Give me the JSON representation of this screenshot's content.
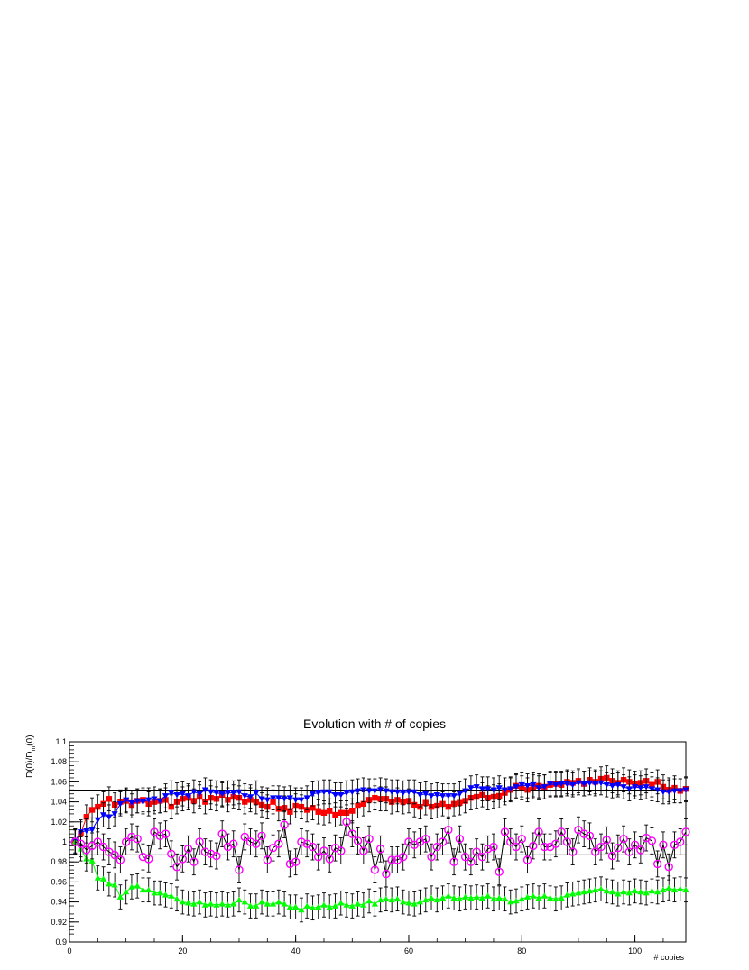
{
  "chart_data": {
    "type": "scatter",
    "title": "Evolution with # of copies",
    "xlabel": "# copies",
    "ylabel": "D(0)/D_m(0)",
    "xlim": [
      0,
      109
    ],
    "ylim": [
      0.9,
      1.1
    ],
    "x_ticks": [
      0,
      20,
      40,
      60,
      80,
      100
    ],
    "y_ticks": [
      0.9,
      0.92,
      0.94,
      0.96,
      0.98,
      1,
      1.02,
      1.04,
      1.06,
      1.08,
      1.1
    ],
    "reference_lines": [
      1.051,
      0.987
    ],
    "grid": false,
    "series": [
      {
        "color": "#ff0000",
        "marker": "square",
        "error": 0.012,
        "y": [
          1.0,
          1.008,
          1.025,
          1.032,
          1.035,
          1.038,
          1.043,
          1.037,
          1.04,
          1.041,
          1.036,
          1.041,
          1.042,
          1.038,
          1.04,
          1.041,
          1.042,
          1.035,
          1.04,
          1.043,
          1.044,
          1.041,
          1.045,
          1.04,
          1.044,
          1.043,
          1.047,
          1.042,
          1.045,
          1.044,
          1.04,
          1.042,
          1.04,
          1.037,
          1.035,
          1.04,
          1.033,
          1.034,
          1.03,
          1.036,
          1.035,
          1.032,
          1.034,
          1.03,
          1.029,
          1.031,
          1.027,
          1.029,
          1.029,
          1.031,
          1.036,
          1.038,
          1.042,
          1.044,
          1.043,
          1.043,
          1.04,
          1.042,
          1.04,
          1.041,
          1.037,
          1.035,
          1.039,
          1.035,
          1.036,
          1.038,
          1.035,
          1.038,
          1.039,
          1.041,
          1.044,
          1.045,
          1.047,
          1.044,
          1.045,
          1.046,
          1.049,
          1.052,
          1.056,
          1.054,
          1.052,
          1.055,
          1.056,
          1.055,
          1.057,
          1.058,
          1.057,
          1.06,
          1.059,
          1.061,
          1.058,
          1.062,
          1.06,
          1.063,
          1.064,
          1.061,
          1.059,
          1.062,
          1.06,
          1.058,
          1.059,
          1.061,
          1.057,
          1.06,
          1.055,
          1.052,
          1.054,
          1.051,
          1.053
        ]
      },
      {
        "color": "#0000ff",
        "marker": "triangle-down",
        "error": 0.012,
        "y": [
          1.001,
          1.01,
          1.011,
          1.012,
          1.022,
          1.027,
          1.025,
          1.028,
          1.038,
          1.042,
          1.039,
          1.041,
          1.04,
          1.042,
          1.043,
          1.041,
          1.046,
          1.049,
          1.047,
          1.048,
          1.046,
          1.05,
          1.048,
          1.052,
          1.05,
          1.049,
          1.048,
          1.049,
          1.049,
          1.05,
          1.046,
          1.045,
          1.049,
          1.043,
          1.042,
          1.044,
          1.044,
          1.043,
          1.044,
          1.042,
          1.042,
          1.044,
          1.048,
          1.049,
          1.05,
          1.05,
          1.047,
          1.047,
          1.049,
          1.05,
          1.051,
          1.052,
          1.051,
          1.051,
          1.052,
          1.051,
          1.05,
          1.05,
          1.049,
          1.05,
          1.05,
          1.047,
          1.048,
          1.046,
          1.047,
          1.046,
          1.046,
          1.046,
          1.048,
          1.051,
          1.054,
          1.055,
          1.053,
          1.053,
          1.052,
          1.054,
          1.052,
          1.053,
          1.055,
          1.057,
          1.056,
          1.057,
          1.054,
          1.055,
          1.058,
          1.057,
          1.058,
          1.058,
          1.057,
          1.059,
          1.058,
          1.059,
          1.058,
          1.059,
          1.057,
          1.056,
          1.057,
          1.055,
          1.053,
          1.055,
          1.054,
          1.055,
          1.053,
          1.052,
          1.05,
          1.05,
          1.051,
          1.051,
          1.052
        ]
      },
      {
        "color": "#00ff00",
        "marker": "triangle-up",
        "error": 0.012,
        "y": [
          1.0,
          0.993,
          0.983,
          0.981,
          0.964,
          0.963,
          0.958,
          0.957,
          0.945,
          0.95,
          0.955,
          0.956,
          0.952,
          0.952,
          0.949,
          0.949,
          0.947,
          0.946,
          0.943,
          0.94,
          0.939,
          0.938,
          0.94,
          0.937,
          0.938,
          0.937,
          0.938,
          0.937,
          0.938,
          0.942,
          0.94,
          0.936,
          0.936,
          0.94,
          0.938,
          0.938,
          0.94,
          0.938,
          0.935,
          0.935,
          0.932,
          0.936,
          0.934,
          0.935,
          0.937,
          0.935,
          0.936,
          0.939,
          0.937,
          0.936,
          0.938,
          0.937,
          0.941,
          0.938,
          0.942,
          0.943,
          0.942,
          0.943,
          0.94,
          0.939,
          0.938,
          0.94,
          0.942,
          0.944,
          0.942,
          0.944,
          0.946,
          0.944,
          0.943,
          0.945,
          0.944,
          0.945,
          0.944,
          0.946,
          0.943,
          0.944,
          0.943,
          0.94,
          0.941,
          0.943,
          0.945,
          0.946,
          0.944,
          0.946,
          0.944,
          0.943,
          0.944,
          0.947,
          0.948,
          0.949,
          0.95,
          0.951,
          0.952,
          0.953,
          0.951,
          0.95,
          0.948,
          0.95,
          0.949,
          0.951,
          0.95,
          0.949,
          0.951,
          0.95,
          0.952,
          0.954,
          0.952,
          0.953,
          0.952
        ]
      },
      {
        "color": "#ff00ff",
        "marker": "open-circle",
        "line_color": "#000000",
        "error": 0.013,
        "y": [
          1.0,
          0.998,
          0.992,
          0.996,
          1.0,
          0.995,
          0.99,
          0.987,
          0.982,
          1.0,
          1.005,
          1.003,
          0.985,
          0.983,
          1.01,
          1.006,
          1.008,
          0.988,
          0.975,
          0.983,
          0.993,
          0.98,
          1.0,
          0.99,
          0.988,
          0.986,
          1.008,
          0.995,
          0.998,
          0.972,
          1.005,
          1.0,
          0.998,
          1.006,
          0.982,
          0.994,
          0.998,
          1.017,
          0.978,
          0.98,
          1.0,
          0.998,
          0.995,
          0.985,
          0.991,
          0.983,
          0.994,
          0.991,
          1.02,
          1.008,
          1.001,
          0.991,
          1.003,
          0.972,
          0.993,
          0.968,
          0.982,
          0.982,
          0.985,
          1.0,
          0.997,
          1.0,
          1.003,
          0.985,
          0.995,
          1.0,
          1.012,
          0.98,
          1.003,
          0.985,
          0.98,
          0.99,
          0.985,
          0.993,
          0.995,
          0.97,
          1.01,
          1.0,
          0.995,
          1.003,
          0.982,
          0.996,
          1.01,
          0.995,
          0.995,
          0.998,
          1.01,
          1.0,
          0.99,
          1.012,
          1.008,
          1.006,
          0.99,
          0.995,
          1.002,
          0.986,
          0.994,
          1.003,
          0.99,
          0.997,
          0.992,
          1.004,
          1.001,
          0.978,
          0.997,
          0.975,
          0.997,
          1.0,
          1.01
        ]
      }
    ]
  }
}
